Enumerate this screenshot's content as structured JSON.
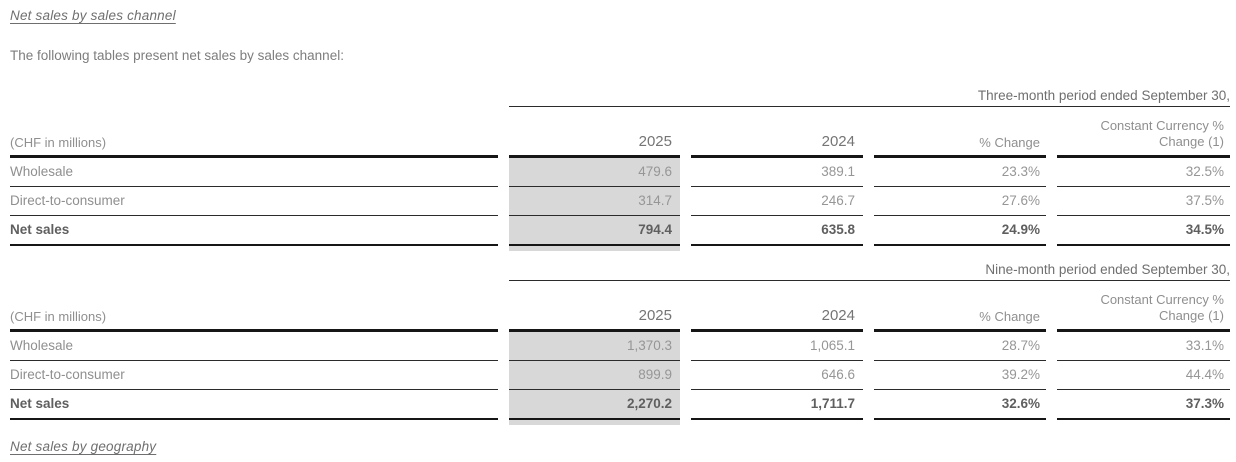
{
  "document": {
    "section_title": "Net sales by sales channel",
    "intro_text": "The following tables present net sales by sales channel:",
    "footer_section_title": "Net sales by geography"
  },
  "colors": {
    "shade_column": "#d8d8d8",
    "rule_dark": "#161616",
    "rule_thin": "#2b2b2b",
    "text_gray": "#8f8f8f",
    "text_bold": "#5f5f5f"
  },
  "tables": [
    {
      "period_header": "Three-month period ended September 30,",
      "unit_label": "(CHF in millions)",
      "columns": {
        "year_current": "2025",
        "year_prior": "2024",
        "pct_change": "% Change",
        "cc_line1": "Constant Currency %",
        "cc_line2": "Change (1)"
      },
      "rows": [
        {
          "label": "Wholesale",
          "current": "479.6",
          "prior": "389.1",
          "pct": "23.3%",
          "cc": "32.5%"
        },
        {
          "label": "Direct-to-consumer",
          "current": "314.7",
          "prior": "246.7",
          "pct": "27.6%",
          "cc": "37.5%"
        },
        {
          "label": "Net sales",
          "current": "794.4",
          "prior": "635.8",
          "pct": "24.9%",
          "cc": "34.5%"
        }
      ]
    },
    {
      "period_header": "Nine-month period ended September 30,",
      "unit_label": "(CHF in millions)",
      "columns": {
        "year_current": "2025",
        "year_prior": "2024",
        "pct_change": "% Change",
        "cc_line1": "Constant Currency %",
        "cc_line2": "Change (1)"
      },
      "rows": [
        {
          "label": "Wholesale",
          "current": "1,370.3",
          "prior": "1,065.1",
          "pct": "28.7%",
          "cc": "33.1%"
        },
        {
          "label": "Direct-to-consumer",
          "current": "899.9",
          "prior": "646.6",
          "pct": "39.2%",
          "cc": "44.4%"
        },
        {
          "label": "Net sales",
          "current": "2,270.2",
          "prior": "1,711.7",
          "pct": "32.6%",
          "cc": "37.3%"
        }
      ]
    }
  ]
}
